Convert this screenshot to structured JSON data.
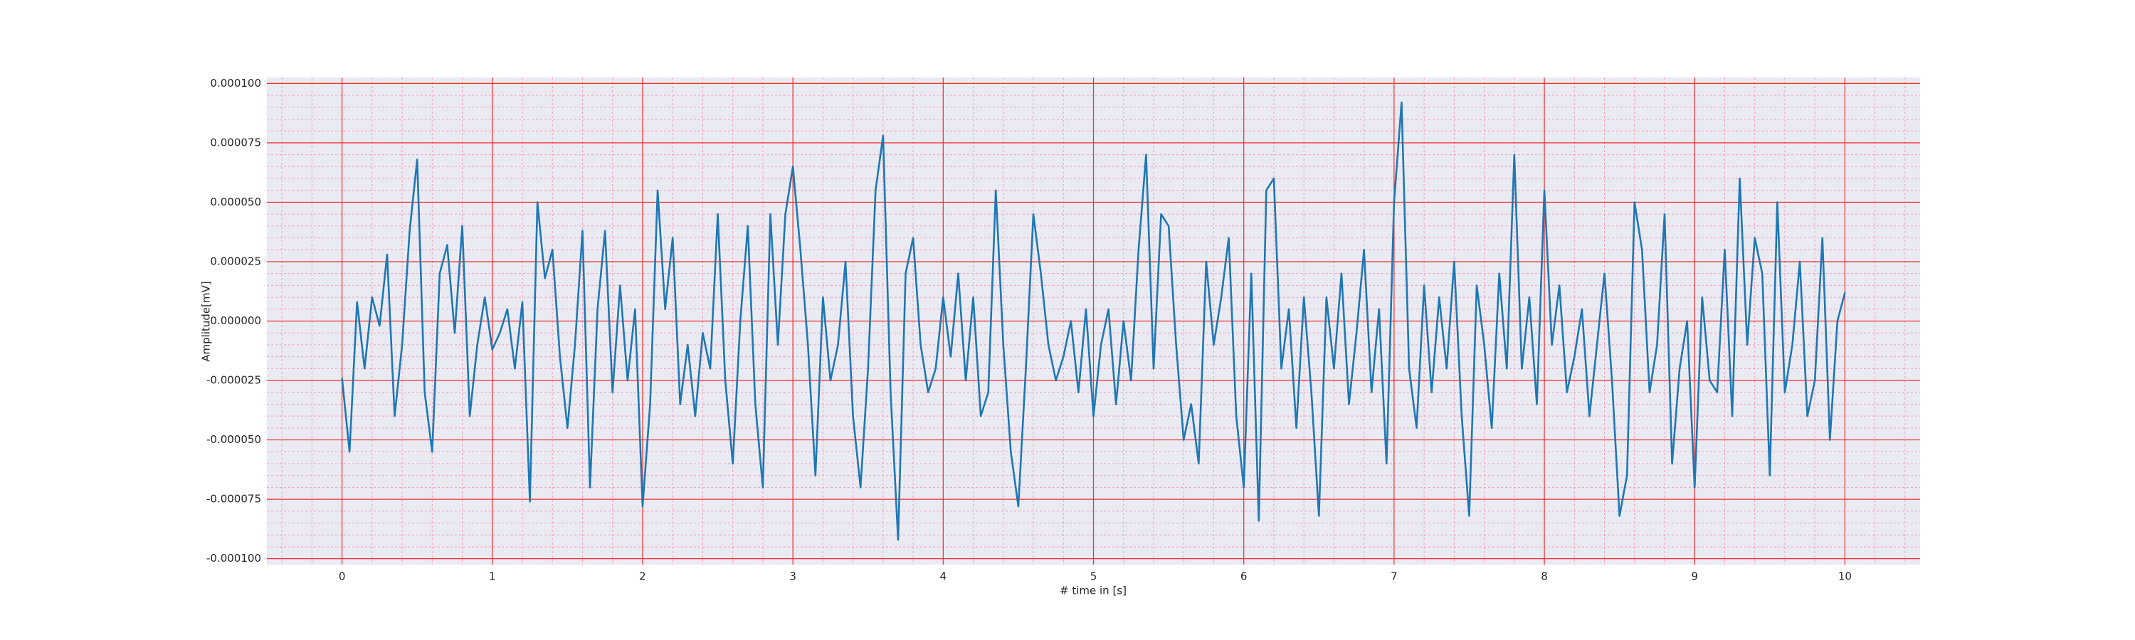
{
  "chart_data": {
    "type": "line",
    "xlabel": "# time in [s]",
    "ylabel": "Amplitude[mV]",
    "color": "#1f77b4",
    "grid": true,
    "minor_grid": true,
    "xlim": [
      -0.5,
      10.5
    ],
    "ylim": [
      -0.0001025,
      0.0001025
    ],
    "xticks": [
      0,
      1,
      2,
      3,
      4,
      5,
      6,
      7,
      8,
      9,
      10
    ],
    "yticks": [
      {
        "value": -0.0001,
        "label": "-0.000100"
      },
      {
        "value": -7.5e-05,
        "label": "-0.000075"
      },
      {
        "value": -5e-05,
        "label": "-0.000050"
      },
      {
        "value": -2.5e-05,
        "label": "-0.000025"
      },
      {
        "value": 0,
        "label": "0.000000"
      },
      {
        "value": 2.5e-05,
        "label": "0.000025"
      },
      {
        "value": 5e-05,
        "label": "0.000050"
      },
      {
        "value": 7.5e-05,
        "label": "0.000075"
      },
      {
        "value": 0.0001,
        "label": "0.000100"
      }
    ],
    "x": [
      0,
      0.05,
      0.1,
      0.15,
      0.2,
      0.25,
      0.3,
      0.35,
      0.4,
      0.45,
      0.5,
      0.55,
      0.6,
      0.65,
      0.7,
      0.75,
      0.8,
      0.85,
      0.9,
      0.95,
      1,
      1.05,
      1.1,
      1.15,
      1.2,
      1.25,
      1.3,
      1.35,
      1.4,
      1.45,
      1.5,
      1.55,
      1.6,
      1.65,
      1.7,
      1.75,
      1.8,
      1.85,
      1.9,
      1.95,
      2,
      2.05,
      2.1,
      2.15,
      2.2,
      2.25,
      2.3,
      2.35,
      2.4,
      2.45,
      2.5,
      2.55,
      2.6,
      2.65,
      2.7,
      2.75,
      2.8,
      2.85,
      2.9,
      2.95,
      3,
      3.05,
      3.1,
      3.15,
      3.2,
      3.25,
      3.3,
      3.35,
      3.4,
      3.45,
      3.5,
      3.55,
      3.6,
      3.65,
      3.7,
      3.75,
      3.8,
      3.85,
      3.9,
      3.95,
      4,
      4.05,
      4.1,
      4.15,
      4.2,
      4.25,
      4.3,
      4.35,
      4.4,
      4.45,
      4.5,
      4.55,
      4.6,
      4.65,
      4.7,
      4.75,
      4.8,
      4.85,
      4.9,
      4.95,
      5,
      5.05,
      5.1,
      5.15,
      5.2,
      5.25,
      5.3,
      5.35,
      5.4,
      5.45,
      5.5,
      5.55,
      5.6,
      5.65,
      5.7,
      5.75,
      5.8,
      5.85,
      5.9,
      5.95,
      6,
      6.05,
      6.1,
      6.15,
      6.2,
      6.25,
      6.3,
      6.35,
      6.4,
      6.45,
      6.5,
      6.55,
      6.6,
      6.65,
      6.7,
      6.75,
      6.8,
      6.85,
      6.9,
      6.95,
      7,
      7.05,
      7.1,
      7.15,
      7.2,
      7.25,
      7.3,
      7.35,
      7.4,
      7.45,
      7.5,
      7.55,
      7.6,
      7.65,
      7.7,
      7.75,
      7.8,
      7.85,
      7.9,
      7.95,
      8,
      8.05,
      8.1,
      8.15,
      8.2,
      8.25,
      8.3,
      8.35,
      8.4,
      8.45,
      8.5,
      8.55,
      8.6,
      8.65,
      8.7,
      8.75,
      8.8,
      8.85,
      8.9,
      8.95,
      9,
      9.05,
      9.1,
      9.15,
      9.2,
      9.25,
      9.3,
      9.35,
      9.4,
      9.45,
      9.5,
      9.55,
      9.6,
      9.65,
      9.7,
      9.75,
      9.8,
      9.85,
      9.9,
      9.95,
      10
    ],
    "values": [
      -2.4e-05,
      -5.5e-05,
      8e-06,
      -2e-05,
      1e-05,
      -2e-06,
      2.8e-05,
      -4e-05,
      -1e-05,
      3.8e-05,
      6.8e-05,
      -3e-05,
      -5.5e-05,
      2e-05,
      3.2e-05,
      -5e-06,
      4e-05,
      -4e-05,
      -1e-05,
      1e-05,
      -1.2e-05,
      -5e-06,
      5e-06,
      -2e-05,
      8e-06,
      -7.6e-05,
      5e-05,
      1.8e-05,
      3e-05,
      -1.5e-05,
      -4.5e-05,
      -1e-05,
      3.8e-05,
      -7e-05,
      5e-06,
      3.8e-05,
      -3e-05,
      1.5e-05,
      -2.5e-05,
      5e-06,
      -7.8e-05,
      -3.5e-05,
      5.5e-05,
      5e-06,
      3.5e-05,
      -3.5e-05,
      -1e-05,
      -4e-05,
      -5e-06,
      -2e-05,
      4.5e-05,
      -2.5e-05,
      -6e-05,
      0,
      4e-05,
      -3.5e-05,
      -7e-05,
      4.5e-05,
      -1e-05,
      4.5e-05,
      6.5e-05,
      3e-05,
      -1e-05,
      -6.5e-05,
      1e-05,
      -2.5e-05,
      -1e-05,
      2.5e-05,
      -4e-05,
      -7e-05,
      -2e-05,
      5.5e-05,
      7.8e-05,
      -3e-05,
      -9.2e-05,
      2e-05,
      3.5e-05,
      -1e-05,
      -3e-05,
      -2e-05,
      1e-05,
      -1.5e-05,
      2e-05,
      -2.5e-05,
      1e-05,
      -4e-05,
      -3e-05,
      5.5e-05,
      -1e-05,
      -5.5e-05,
      -7.8e-05,
      -2e-05,
      4.5e-05,
      2e-05,
      -1e-05,
      -2.5e-05,
      -1.5e-05,
      0,
      -3e-05,
      5e-06,
      -4e-05,
      -1e-05,
      5e-06,
      -3.5e-05,
      0,
      -2.5e-05,
      3e-05,
      7e-05,
      -2e-05,
      4.5e-05,
      4e-05,
      -1e-05,
      -5e-05,
      -3.5e-05,
      -6e-05,
      2.5e-05,
      -1e-05,
      1e-05,
      3.5e-05,
      -4e-05,
      -7e-05,
      2e-05,
      -8.4e-05,
      5.5e-05,
      6e-05,
      -2e-05,
      5e-06,
      -4.5e-05,
      1e-05,
      -3e-05,
      -8.2e-05,
      1e-05,
      -2e-05,
      2e-05,
      -3.5e-05,
      -5e-06,
      3e-05,
      -3e-05,
      5e-06,
      -6e-05,
      5e-05,
      9.2e-05,
      -2e-05,
      -4.5e-05,
      1.5e-05,
      -3e-05,
      1e-05,
      -2e-05,
      2.5e-05,
      -4e-05,
      -8.2e-05,
      1.5e-05,
      -1e-05,
      -4.5e-05,
      2e-05,
      -2e-05,
      7e-05,
      -2e-05,
      1e-05,
      -3.5e-05,
      5.5e-05,
      -1e-05,
      1.5e-05,
      -3e-05,
      -1.5e-05,
      5e-06,
      -4e-05,
      -1e-05,
      2e-05,
      -2.5e-05,
      -8.2e-05,
      -6.5e-05,
      5e-05,
      3e-05,
      -3e-05,
      -1e-05,
      4.5e-05,
      -6e-05,
      -2e-05,
      0,
      -7e-05,
      1e-05,
      -2.5e-05,
      -3e-05,
      3e-05,
      -4e-05,
      6e-05,
      -1e-05,
      3.5e-05,
      2e-05,
      -6.5e-05,
      5e-05,
      -3e-05,
      -1e-05,
      2.5e-05,
      -4e-05,
      -2.5e-05,
      3.5e-05,
      -5e-05,
      0,
      1.2e-05
    ]
  }
}
